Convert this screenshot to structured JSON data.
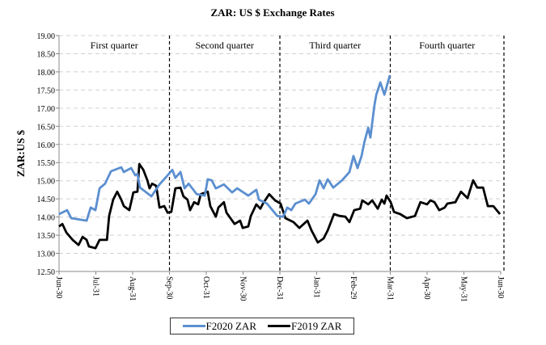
{
  "chart_data": {
    "type": "line",
    "title": "ZAR: US $ Exchange Rates",
    "xlabel": "",
    "ylabel": "ZAR:US $",
    "ylim": [
      12.5,
      19.0
    ],
    "yticks": [
      "12.50",
      "13.00",
      "13.50",
      "14.00",
      "14.50",
      "15.00",
      "15.50",
      "16.00",
      "16.50",
      "17.00",
      "17.50",
      "18.00",
      "18.50",
      "19.00"
    ],
    "xlim": [
      0,
      12
    ],
    "x_unit": "months since Jun-30",
    "xticks": [
      "Jun-30",
      "Jul-31",
      "Aug-31",
      "Sep-30",
      "Oct-31",
      "Nov-30",
      "Dec-31",
      "Jan-31",
      "Feb-29",
      "Mar-31",
      "Apr-30",
      "May-31",
      "Jun-30"
    ],
    "grid": "horizontal dashed",
    "legend_position": "bottom",
    "quarters": [
      {
        "label": "First quarter",
        "end": 3
      },
      {
        "label": "Second quarter",
        "end": 6
      },
      {
        "label": "Third quarter",
        "end": 9
      },
      {
        "label": "Fourth quarter",
        "end": 12
      }
    ],
    "series": [
      {
        "name": "F2020 ZAR",
        "color": "#5b8fd0",
        "x": [
          0,
          0.22,
          0.33,
          0.75,
          0.86,
          0.99,
          1.1,
          1.25,
          1.41,
          1.69,
          1.76,
          1.96,
          2.07,
          2.13,
          2.2,
          2.51,
          2.73,
          2.95,
          3.08,
          3.16,
          3.3,
          3.41,
          3.52,
          3.74,
          3.96,
          4.04,
          4.15,
          4.26,
          4.48,
          4.7,
          4.84,
          5.14,
          5.36,
          5.43,
          5.65,
          5.93,
          6.09,
          6.2,
          6.31,
          6.42,
          6.68,
          6.79,
          6.97,
          7.08,
          7.19,
          7.3,
          7.45,
          7.69,
          7.89,
          8.0,
          8.11,
          8.22,
          8.29,
          8.4,
          8.46,
          8.57,
          8.62,
          8.73,
          8.84,
          8.99
        ],
        "y": [
          14.08,
          14.19,
          13.97,
          13.9,
          14.26,
          14.19,
          14.79,
          14.92,
          15.26,
          15.37,
          15.24,
          15.35,
          15.15,
          15.19,
          14.81,
          14.57,
          14.9,
          15.15,
          15.3,
          15.08,
          15.24,
          14.79,
          14.92,
          14.63,
          14.59,
          15.04,
          15.01,
          14.79,
          14.9,
          14.68,
          14.79,
          14.59,
          14.75,
          14.48,
          14.37,
          14.03,
          14.01,
          14.26,
          14.19,
          14.37,
          14.48,
          14.37,
          14.63,
          15.01,
          14.79,
          15.04,
          14.81,
          15.01,
          15.24,
          15.68,
          15.35,
          15.68,
          16.04,
          16.46,
          16.19,
          17.08,
          17.37,
          17.71,
          17.37,
          17.91
        ]
      },
      {
        "name": "F2019 ZAR",
        "color": "#000000",
        "x": [
          0,
          0.09,
          0.2,
          0.37,
          0.53,
          0.64,
          0.75,
          0.81,
          0.99,
          1.1,
          1.3,
          1.36,
          1.47,
          1.58,
          1.69,
          1.76,
          1.91,
          2.02,
          2.13,
          2.18,
          2.29,
          2.4,
          2.46,
          2.53,
          2.64,
          2.73,
          2.86,
          2.95,
          3.05,
          3.16,
          3.3,
          3.38,
          3.49,
          3.56,
          3.67,
          3.78,
          3.85,
          4.04,
          4.11,
          4.26,
          4.33,
          4.48,
          4.55,
          4.77,
          4.92,
          4.99,
          5.14,
          5.21,
          5.36,
          5.47,
          5.54,
          5.71,
          5.87,
          6.02,
          6.15,
          6.37,
          6.53,
          6.75,
          6.86,
          7.03,
          7.19,
          7.3,
          7.47,
          7.63,
          7.78,
          7.89,
          8.02,
          8.18,
          8.24,
          8.4,
          8.51,
          8.66,
          8.77,
          8.84,
          8.9,
          9.01,
          9.1,
          9.27,
          9.45,
          9.67,
          9.82,
          10.0,
          10.09,
          10.2,
          10.33,
          10.48,
          10.55,
          10.77,
          10.92,
          11.1,
          11.25,
          11.36,
          11.52,
          11.65,
          11.8,
          11.98
        ],
        "y": [
          13.74,
          13.81,
          13.57,
          13.37,
          13.23,
          13.45,
          13.37,
          13.19,
          13.14,
          13.37,
          13.37,
          14.03,
          14.48,
          14.7,
          14.48,
          14.3,
          14.19,
          14.68,
          14.7,
          15.46,
          15.3,
          15.01,
          14.79,
          14.92,
          14.86,
          14.26,
          14.3,
          14.12,
          14.14,
          14.79,
          14.81,
          14.57,
          14.48,
          14.19,
          14.41,
          14.35,
          14.63,
          14.7,
          14.3,
          14.01,
          14.26,
          14.41,
          14.12,
          13.81,
          13.9,
          13.7,
          13.74,
          14.03,
          14.35,
          14.23,
          14.37,
          14.63,
          14.46,
          14.37,
          13.97,
          13.86,
          13.7,
          13.9,
          13.63,
          13.3,
          13.41,
          13.63,
          14.08,
          14.03,
          14.01,
          13.86,
          14.19,
          14.23,
          14.46,
          14.35,
          14.46,
          14.23,
          14.48,
          14.37,
          14.59,
          14.41,
          14.14,
          14.08,
          13.97,
          14.03,
          14.41,
          14.35,
          14.46,
          14.41,
          14.19,
          14.26,
          14.37,
          14.41,
          14.7,
          14.52,
          15.01,
          14.81,
          14.81,
          14.3,
          14.3,
          14.08
        ]
      }
    ]
  }
}
